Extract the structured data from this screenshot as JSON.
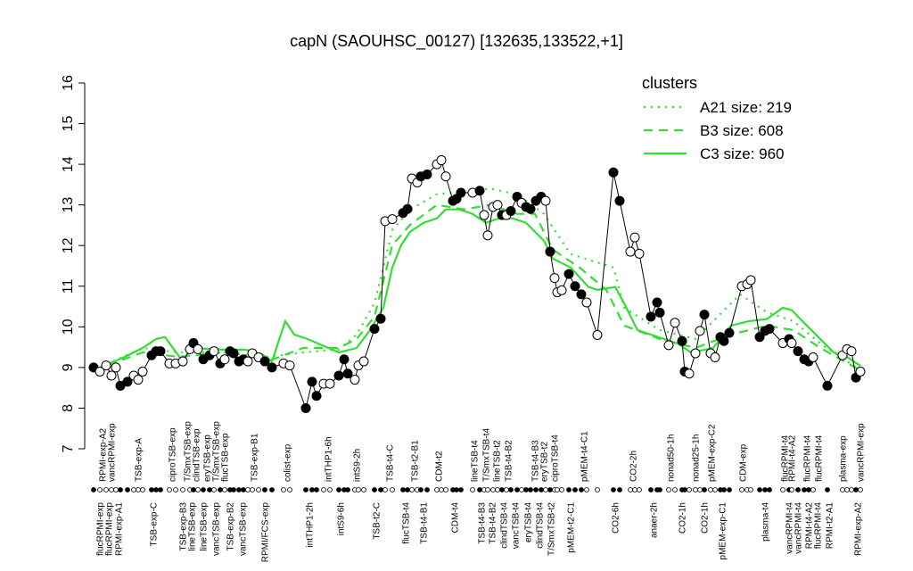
{
  "chart_data": {
    "type": "line",
    "title": "capN (SAOUHSC_00127) [132635,133522,+1]",
    "ylim": [
      7,
      16
    ],
    "yticks": [
      7,
      8,
      9,
      10,
      11,
      12,
      13,
      14,
      15,
      16
    ],
    "xlim": [
      0,
      870
    ],
    "points": {
      "color": "#000000",
      "x": [
        0,
        7,
        14,
        20,
        25,
        30,
        38,
        45,
        50,
        55,
        65,
        70,
        75,
        85,
        92,
        100,
        108,
        112,
        117,
        123,
        130,
        135,
        142,
        147,
        153,
        157,
        163,
        168,
        173,
        178,
        185,
        192,
        200,
        213,
        220,
        238,
        245,
        250,
        258,
        265,
        275,
        281,
        285,
        293,
        297,
        303,
        315,
        322,
        327,
        335,
        347,
        352,
        357,
        363,
        367,
        374,
        385,
        390,
        395,
        403,
        407,
        412,
        425,
        433,
        438,
        442,
        448,
        453,
        458,
        463,
        468,
        475,
        480,
        485,
        490,
        496,
        502,
        507,
        512,
        517,
        520,
        525,
        533,
        540,
        547,
        553,
        565,
        583,
        590,
        602,
        607,
        612,
        625,
        632,
        635,
        645,
        652,
        660,
        663,
        668,
        675,
        680,
        685,
        692,
        697,
        703,
        707,
        713,
        727,
        733,
        737,
        747,
        753,
        758,
        773,
        780,
        783,
        790,
        797,
        802,
        807,
        823,
        840,
        845,
        850,
        855,
        860
      ],
      "values": [
        9.0,
        8.9,
        9.05,
        8.8,
        9.0,
        8.55,
        8.65,
        8.8,
        8.7,
        8.9,
        9.3,
        9.4,
        9.4,
        9.1,
        9.1,
        9.15,
        9.45,
        9.6,
        9.45,
        9.2,
        9.3,
        9.4,
        9.1,
        9.2,
        9.4,
        9.35,
        9.15,
        9.2,
        9.15,
        9.35,
        9.25,
        9.15,
        9.0,
        9.1,
        9.05,
        8.0,
        8.65,
        8.3,
        8.6,
        8.6,
        8.8,
        9.2,
        8.85,
        8.7,
        9.05,
        9.15,
        9.95,
        10.2,
        12.6,
        12.65,
        12.8,
        12.9,
        13.65,
        13.55,
        13.7,
        13.75,
        14.0,
        14.1,
        13.7,
        13.1,
        13.15,
        13.3,
        13.3,
        13.35,
        12.75,
        12.25,
        12.95,
        13.0,
        12.75,
        12.75,
        12.85,
        13.2,
        13.05,
        12.95,
        12.9,
        13.1,
        13.2,
        13.1,
        11.85,
        11.2,
        10.85,
        10.9,
        11.3,
        11.0,
        10.8,
        10.6,
        9.8,
        13.8,
        13.1,
        11.85,
        12.2,
        11.8,
        10.25,
        10.6,
        10.35,
        9.55,
        10.1,
        9.65,
        8.9,
        8.85,
        9.35,
        9.9,
        10.3,
        9.35,
        9.25,
        9.75,
        9.65,
        9.85,
        11.0,
        11.05,
        11.15,
        9.75,
        9.9,
        9.95,
        9.6,
        9.7,
        9.6,
        9.4,
        9.2,
        9.15,
        9.25,
        8.55,
        9.3,
        9.45,
        9.4,
        8.75,
        8.9
      ],
      "filled": [
        true,
        false,
        false,
        false,
        false,
        true,
        true,
        false,
        false,
        false,
        true,
        true,
        true,
        false,
        false,
        false,
        false,
        true,
        false,
        true,
        true,
        false,
        true,
        false,
        true,
        true,
        true,
        true,
        false,
        false,
        false,
        true,
        true,
        false,
        false,
        true,
        true,
        true,
        false,
        false,
        true,
        true,
        true,
        false,
        false,
        false,
        true,
        true,
        false,
        false,
        true,
        true,
        false,
        false,
        true,
        true,
        false,
        false,
        false,
        true,
        true,
        true,
        false,
        true,
        false,
        false,
        false,
        false,
        true,
        false,
        true,
        true,
        false,
        true,
        true,
        true,
        true,
        false,
        true,
        false,
        false,
        false,
        true,
        true,
        true,
        false,
        false,
        true,
        true,
        false,
        false,
        false,
        true,
        true,
        true,
        false,
        false,
        true,
        true,
        false,
        false,
        false,
        true,
        false,
        false,
        true,
        true,
        true,
        false,
        false,
        false,
        true,
        true,
        true,
        false,
        true,
        false,
        true,
        true,
        true,
        false,
        true,
        false,
        false,
        false,
        true,
        false
      ]
    },
    "legend_title": "clusters",
    "legend_color": "#33dd33",
    "series": [
      {
        "name": "A21 size: 219",
        "style": "dotted",
        "color": "#33dd33",
        "x": [
          0,
          55,
          95,
          145,
          195,
          235,
          275,
          295,
          315,
          335,
          355,
          385,
          415,
          445,
          475,
          505,
          535,
          583,
          595,
          635,
          675,
          725,
          755,
          785,
          815,
          860
        ],
        "values": [
          8.93,
          9.48,
          9.37,
          9.37,
          9.26,
          9.37,
          9.44,
          9.81,
          10.58,
          12.38,
          12.89,
          13.26,
          13.33,
          13.4,
          13.26,
          12.78,
          11.79,
          11.46,
          10.47,
          9.92,
          9.7,
          10.8,
          10.36,
          10.14,
          9.59,
          8.93
        ]
      },
      {
        "name": "B3 size: 608",
        "style": "dashed",
        "color": "#33dd33",
        "x": [
          0,
          55,
          95,
          145,
          195,
          235,
          275,
          295,
          315,
          335,
          355,
          385,
          415,
          445,
          475,
          495,
          515,
          545,
          575,
          595,
          635,
          675,
          715,
          755,
          785,
          815,
          860
        ],
        "values": [
          8.93,
          9.37,
          9.26,
          9.37,
          9.15,
          9.48,
          9.48,
          9.7,
          10.25,
          12.01,
          12.51,
          13.0,
          12.89,
          13.0,
          12.78,
          12.78,
          11.9,
          11.46,
          10.91,
          10.03,
          9.7,
          9.48,
          9.81,
          10.03,
          9.92,
          9.48,
          8.93
        ]
      },
      {
        "name": "C3 size: 960",
        "style": "solid",
        "color": "#33dd33",
        "x": [
          0,
          35,
          55,
          70,
          80,
          100,
          110,
          145,
          170,
          190,
          200,
          215,
          225,
          240,
          275,
          295,
          310,
          325,
          335,
          345,
          355,
          370,
          385,
          395,
          410,
          425,
          440,
          455,
          470,
          485,
          495,
          505,
          515,
          535,
          555,
          565,
          585,
          595,
          610,
          625,
          640,
          655,
          670,
          695,
          715,
          735,
          755,
          773,
          783,
          795,
          815,
          830,
          845,
          860
        ],
        "values": [
          8.93,
          9.26,
          9.48,
          9.7,
          9.75,
          9.15,
          9.48,
          9.44,
          9.44,
          9.31,
          9.15,
          10.14,
          9.81,
          9.7,
          9.37,
          9.48,
          9.92,
          10.47,
          11.46,
          12.01,
          12.34,
          12.56,
          12.67,
          12.89,
          12.89,
          12.78,
          12.56,
          12.67,
          12.67,
          12.56,
          12.34,
          12.12,
          11.68,
          11.46,
          10.98,
          10.91,
          10.98,
          10.58,
          9.92,
          9.81,
          9.7,
          9.59,
          9.37,
          9.48,
          10.03,
          10.14,
          10.19,
          10.47,
          10.41,
          10.14,
          9.7,
          9.37,
          9.26,
          9.04
        ]
      }
    ],
    "top_labels": [
      {
        "text": "RPMI-exp-A2",
        "x": 10
      },
      {
        "text": "vancRPMI-exp",
        "x": 20
      },
      {
        "text": "TSB-exp-A",
        "x": 50
      },
      {
        "text": "ciproTSB-exp",
        "x": 88
      },
      {
        "text": "T/SmxTSB-exp",
        "x": 105
      },
      {
        "text": "clindTSB-exp",
        "x": 115
      },
      {
        "text": "eryTSB-exp",
        "x": 127
      },
      {
        "text": "T/SmxTSB-exp",
        "x": 137
      },
      {
        "text": "flucTSB-exp",
        "x": 147
      },
      {
        "text": "TSB-exp-B1",
        "x": 180
      },
      {
        "text": "colist-exp",
        "x": 217
      },
      {
        "text": "intTHP1-6h",
        "x": 263
      },
      {
        "text": "intS9-2h",
        "x": 295
      },
      {
        "text": "TSB-t4-C",
        "x": 332
      },
      {
        "text": "TSB-t2-B1",
        "x": 360
      },
      {
        "text": "CDM-t2",
        "x": 387
      },
      {
        "text": "lineTSB-t4",
        "x": 427
      },
      {
        "text": "T/SmxTSB-t4",
        "x": 440
      },
      {
        "text": "lineTSB-t2",
        "x": 452
      },
      {
        "text": "TSB-t4-B2",
        "x": 465
      },
      {
        "text": "TSB-t4-B3",
        "x": 495
      },
      {
        "text": "eryTSB-t2",
        "x": 505
      },
      {
        "text": "ciproTSB-t4",
        "x": 517
      },
      {
        "text": "pMEM-t4-C1",
        "x": 550
      },
      {
        "text": "CO2-2h",
        "x": 605
      },
      {
        "text": "nonad50-1h",
        "x": 647
      },
      {
        "text": "nonad25-1h",
        "x": 675
      },
      {
        "text": "pMEM-exp-C2",
        "x": 693
      },
      {
        "text": "CDM-exp",
        "x": 728
      },
      {
        "text": "flucRPMI-t4",
        "x": 775
      },
      {
        "text": "RPMI-t4-A2",
        "x": 783
      },
      {
        "text": "flucRPMI-t4",
        "x": 800
      },
      {
        "text": "flucRPMI-t4",
        "x": 813
      },
      {
        "text": "plasma-exp",
        "x": 840
      },
      {
        "text": "vancRPMI-exp",
        "x": 860
      }
    ],
    "bottom_labels": [
      {
        "text": "flucRPMI-exp",
        "x": 7
      },
      {
        "text": "flucRPMI-exp",
        "x": 17
      },
      {
        "text": "RPMI-exp-A1",
        "x": 28
      },
      {
        "text": "TSB-exp-C",
        "x": 67
      },
      {
        "text": "TSB-exp-B3",
        "x": 100
      },
      {
        "text": "lineTSB-exp",
        "x": 110
      },
      {
        "text": "lineTSB-exp",
        "x": 123
      },
      {
        "text": "vancTSB-exp",
        "x": 137
      },
      {
        "text": "TSB-exp-B2",
        "x": 153
      },
      {
        "text": "vancTSB-exp",
        "x": 167
      },
      {
        "text": "RPMI/FCS-exp",
        "x": 192
      },
      {
        "text": "intTHP1-2h",
        "x": 242
      },
      {
        "text": "intS9-6h",
        "x": 277
      },
      {
        "text": "TSB-t2-C",
        "x": 317
      },
      {
        "text": "flucTSB-t4",
        "x": 350
      },
      {
        "text": "TSB-t4-B1",
        "x": 370
      },
      {
        "text": "CDM-t4",
        "x": 405
      },
      {
        "text": "TSB-t4-B3",
        "x": 435
      },
      {
        "text": "TSB-t4-B2",
        "x": 447
      },
      {
        "text": "clindTSB-t4",
        "x": 460
      },
      {
        "text": "vancTSB-t4",
        "x": 473
      },
      {
        "text": "eryTSB-t4",
        "x": 487
      },
      {
        "text": "clindTSB-t4",
        "x": 500
      },
      {
        "text": "T/SmxTSB-t2",
        "x": 513
      },
      {
        "text": "pMEM-t2-C1",
        "x": 535
      },
      {
        "text": "CO2-6h",
        "x": 585
      },
      {
        "text": "anaer-2h",
        "x": 628
      },
      {
        "text": "CO2-1h",
        "x": 660
      },
      {
        "text": "CO2-1h",
        "x": 685
      },
      {
        "text": "pMEM-exp-C1",
        "x": 705
      },
      {
        "text": "plasma-t4",
        "x": 753
      },
      {
        "text": "vancRPMI-t4",
        "x": 780
      },
      {
        "text": "vancRPMI-t4",
        "x": 790
      },
      {
        "text": "RPMI-t4-A2",
        "x": 802
      },
      {
        "text": "flucRPMI-t4",
        "x": 812
      },
      {
        "text": "RPMI-t2-A1",
        "x": 825
      },
      {
        "text": "RPMI-exp-A2",
        "x": 857
      }
    ]
  }
}
